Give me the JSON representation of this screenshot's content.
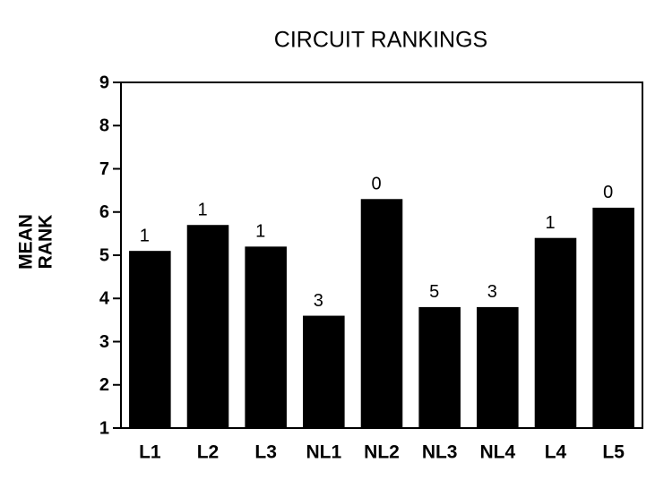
{
  "chart_data": {
    "type": "bar",
    "title": "CIRCUIT RANKINGS",
    "ylabel": [
      "MEAN",
      "RANK"
    ],
    "categories": [
      "L1",
      "L2",
      "L3",
      "NL1",
      "NL2",
      "NL3",
      "NL4",
      "L4",
      "L5"
    ],
    "values": [
      5.1,
      5.7,
      5.2,
      3.6,
      6.3,
      3.8,
      3.8,
      5.4,
      6.1
    ],
    "annotations": [
      1,
      1,
      1,
      3,
      0,
      5,
      3,
      1,
      0
    ],
    "color": "#000000",
    "ylim": [
      1,
      9
    ],
    "yticks": [
      1,
      2,
      3,
      4,
      5,
      6,
      7,
      8,
      9
    ],
    "grid": false
  }
}
